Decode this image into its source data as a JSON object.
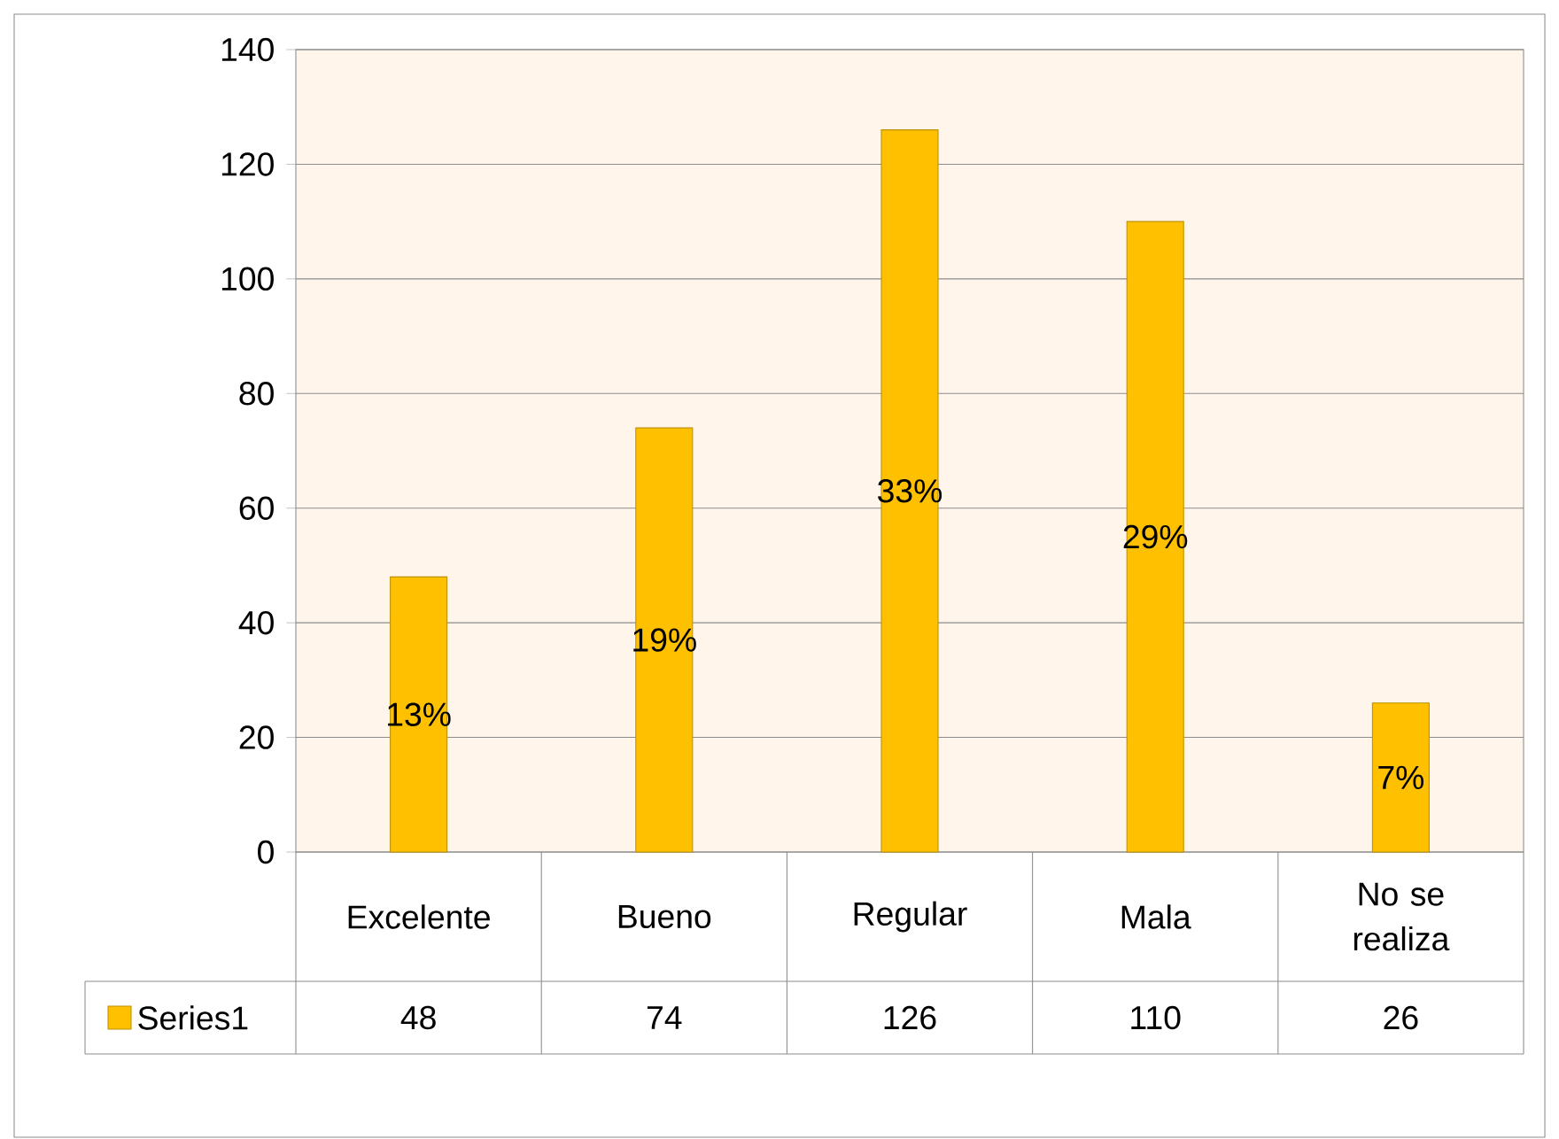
{
  "chart_data": {
    "type": "bar",
    "categories": [
      "Excelente",
      "Bueno",
      "Regular",
      "Mala",
      "No se realiza"
    ],
    "series": [
      {
        "name": "Series1",
        "color": "#ffc000",
        "values": [
          48,
          74,
          126,
          110,
          26
        ]
      }
    ],
    "annotations": [
      "13%",
      "19%",
      "33%",
      "29%",
      "7%"
    ],
    "ylim": [
      0,
      140
    ],
    "yticks": [
      0,
      20,
      40,
      60,
      80,
      100,
      120,
      140
    ],
    "grid": "y",
    "legend": "bottom",
    "data_labels": true
  }
}
